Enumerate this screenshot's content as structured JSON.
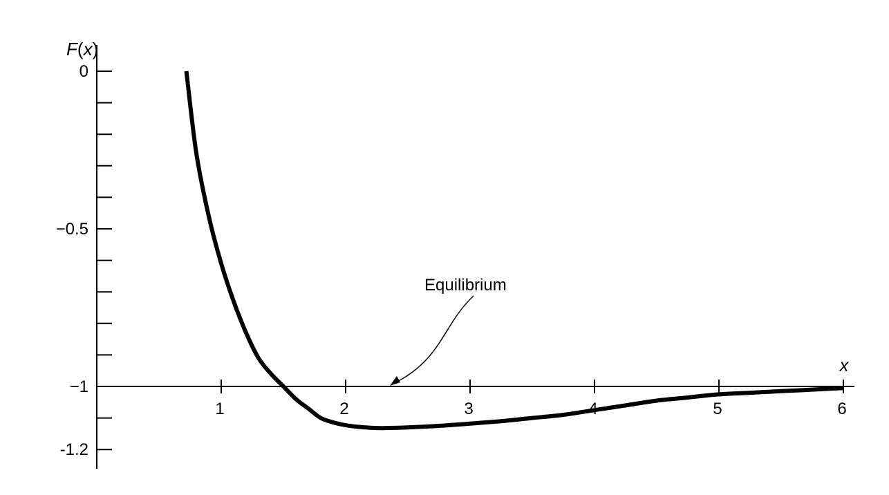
{
  "chart_data": {
    "type": "line",
    "ylabel": "F(x)",
    "xlabel": "x",
    "xlim": [
      0,
      6
    ],
    "ylim": [
      -1.2,
      0
    ],
    "grid": false,
    "x_ticks": [
      1,
      2,
      3,
      4,
      5,
      6
    ],
    "x_tick_labels": [
      "1",
      "2",
      "3",
      "4",
      "5",
      "6"
    ],
    "y_ticks": [
      0,
      -0.1,
      -0.2,
      -0.3,
      -0.4,
      -0.5,
      -0.6,
      -0.7,
      -0.8,
      -0.9,
      -1,
      -1.1,
      -1.2
    ],
    "y_tick_labels": [
      {
        "value": 0,
        "label": "0"
      },
      {
        "value": -0.5,
        "label": "−0.5"
      },
      {
        "value": -1,
        "label": "−1"
      },
      {
        "value": -1.2,
        "label": "-1.2"
      }
    ],
    "x_axis_crosses_y": -1,
    "series": [
      {
        "x": [
          0.72,
          0.8,
          0.9,
          1.0,
          1.1,
          1.2,
          1.3,
          1.4,
          1.5,
          1.6,
          1.7,
          1.8,
          1.9,
          2.0,
          2.1,
          2.2,
          2.3,
          2.5,
          2.75,
          3.0,
          3.25,
          3.5,
          3.75,
          4.0,
          4.25,
          4.5,
          4.75,
          5.0,
          5.25,
          5.5,
          5.75,
          6.0
        ],
        "y": [
          0.0,
          -0.26,
          -0.46,
          -0.61,
          -0.73,
          -0.83,
          -0.91,
          -0.96,
          -1.0,
          -1.04,
          -1.07,
          -1.1,
          -1.114,
          -1.123,
          -1.128,
          -1.131,
          -1.132,
          -1.13,
          -1.125,
          -1.118,
          -1.11,
          -1.1,
          -1.09,
          -1.075,
          -1.06,
          -1.045,
          -1.035,
          -1.025,
          -1.02,
          -1.015,
          -1.01,
          -1.005
        ]
      }
    ],
    "annotations": [
      {
        "text": "Equilibrium",
        "x": 2.35,
        "y": -1
      }
    ],
    "colors": {
      "line": "#000000",
      "axis": "#000000"
    }
  }
}
